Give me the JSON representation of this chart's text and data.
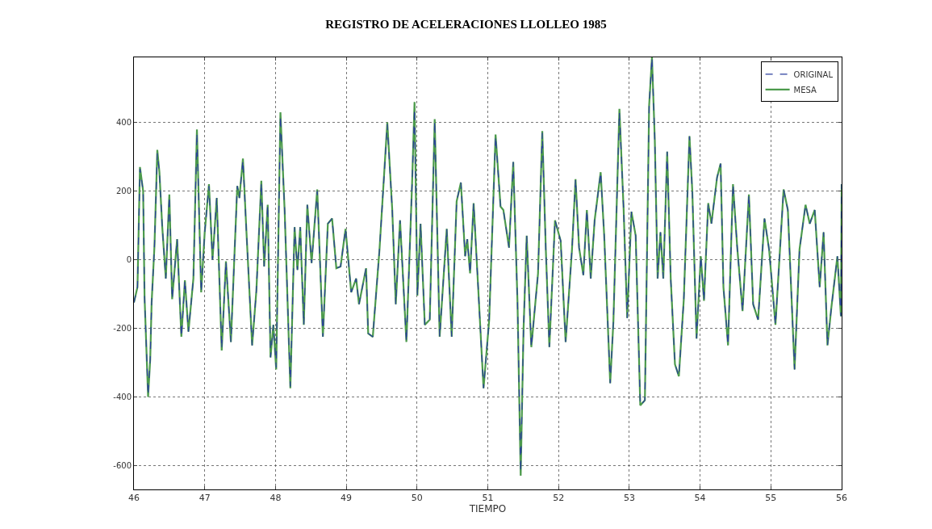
{
  "chart_data": {
    "type": "line",
    "title": "REGISTRO DE ACELERACIONES LLOLLEO 1985",
    "xlabel": "TIEMPO",
    "x": [
      46.0,
      46.05,
      46.085,
      46.13,
      46.15,
      46.2,
      46.23,
      46.25,
      46.29,
      46.33,
      46.36,
      46.4,
      46.45,
      46.5,
      46.54,
      46.61,
      46.67,
      46.72,
      46.77,
      46.84,
      46.89,
      46.95,
      47.0,
      47.06,
      47.11,
      47.17,
      47.24,
      47.3,
      47.37,
      47.46,
      47.49,
      47.54,
      47.59,
      47.67,
      47.73,
      47.8,
      47.84,
      47.89,
      47.93,
      47.97,
      48.01,
      48.07,
      48.13,
      48.21,
      48.27,
      48.31,
      48.35,
      48.4,
      48.45,
      48.51,
      48.59,
      48.67,
      48.74,
      48.8,
      48.86,
      48.92,
      48.99,
      49.07,
      49.14,
      49.18,
      49.28,
      49.31,
      49.375,
      49.47,
      49.58,
      49.65,
      49.7,
      49.76,
      49.85,
      49.93,
      49.965,
      50.005,
      50.05,
      50.11,
      50.18,
      50.25,
      50.32,
      50.42,
      50.49,
      50.56,
      50.62,
      50.68,
      50.71,
      50.75,
      50.8,
      50.86,
      50.94,
      51.02,
      51.11,
      51.18,
      51.22,
      51.3,
      51.36,
      51.42,
      51.465,
      51.505,
      51.55,
      51.615,
      51.71,
      51.77,
      51.82,
      51.87,
      51.95,
      52.03,
      52.1,
      52.19,
      52.24,
      52.29,
      52.35,
      52.4,
      52.455,
      52.51,
      52.595,
      52.645,
      52.73,
      52.775,
      52.83,
      52.86,
      52.92,
      52.97,
      53.03,
      53.09,
      53.155,
      53.22,
      53.28,
      53.32,
      53.36,
      53.4,
      53.44,
      53.48,
      53.535,
      53.585,
      53.645,
      53.7,
      53.77,
      53.85,
      53.89,
      53.95,
      54.01,
      54.055,
      54.115,
      54.16,
      54.24,
      54.29,
      54.33,
      54.395,
      54.465,
      54.525,
      54.6,
      54.69,
      54.75,
      54.82,
      54.91,
      54.975,
      55.065,
      55.18,
      55.24,
      55.335,
      55.405,
      55.49,
      55.55,
      55.62,
      55.69,
      55.745,
      55.8,
      55.855,
      55.94,
      55.99,
      56.0
    ],
    "series": [
      {
        "name": "ORIGINAL",
        "color": "#2b3f9e",
        "line_style": "dashed",
        "values": [
          -125,
          -80,
          265,
          200,
          -110,
          -395,
          -290,
          -125,
          40,
          310,
          255,
          95,
          -55,
          185,
          -115,
          60,
          -225,
          -60,
          -210,
          -55,
          370,
          -95,
          80,
          215,
          0,
          180,
          -260,
          -5,
          -240,
          215,
          180,
          290,
          80,
          -250,
          -90,
          225,
          -20,
          160,
          -285,
          -190,
          -315,
          420,
          140,
          -370,
          95,
          -30,
          95,
          -190,
          160,
          -10,
          200,
          -225,
          105,
          120,
          -25,
          -20,
          90,
          -95,
          -55,
          -130,
          -25,
          -215,
          -225,
          30,
          395,
          145,
          -130,
          115,
          -240,
          220,
          440,
          -105,
          105,
          -190,
          -175,
          405,
          -225,
          90,
          -225,
          170,
          225,
          10,
          60,
          -40,
          165,
          -65,
          -375,
          -175,
          360,
          155,
          145,
          35,
          285,
          -125,
          -620,
          -205,
          70,
          -255,
          -40,
          370,
          30,
          -255,
          115,
          55,
          -240,
          30,
          235,
          35,
          -45,
          145,
          -55,
          115,
          255,
          70,
          -360,
          -180,
          220,
          430,
          145,
          -170,
          140,
          70,
          -425,
          -410,
          450,
          590,
          350,
          -55,
          80,
          -55,
          315,
          -55,
          -305,
          -340,
          -115,
          360,
          200,
          -230,
          10,
          -120,
          165,
          105,
          240,
          280,
          -80,
          -250,
          220,
          35,
          -150,
          190,
          -130,
          -175,
          120,
          30,
          -190,
          205,
          145,
          -320,
          30,
          160,
          105,
          145,
          -80,
          80,
          -250,
          -140,
          10,
          -165,
          220
        ]
      },
      {
        "name": "MESA",
        "color": "#4c9a4c",
        "values": [
          -125,
          -80,
          270,
          200,
          -110,
          -400,
          -290,
          -125,
          40,
          320,
          255,
          95,
          -55,
          190,
          -115,
          60,
          -225,
          -60,
          -210,
          -55,
          380,
          -95,
          80,
          220,
          0,
          180,
          -265,
          -5,
          -240,
          215,
          180,
          295,
          80,
          -250,
          -90,
          230,
          -20,
          160,
          -285,
          -190,
          -320,
          430,
          140,
          -375,
          95,
          -30,
          95,
          -190,
          160,
          -10,
          205,
          -225,
          105,
          120,
          -25,
          -20,
          90,
          -95,
          -55,
          -130,
          -25,
          -215,
          -225,
          30,
          400,
          145,
          -130,
          115,
          -240,
          220,
          460,
          -105,
          105,
          -190,
          -175,
          410,
          -225,
          90,
          -225,
          170,
          225,
          10,
          60,
          -40,
          165,
          -65,
          -375,
          -175,
          365,
          155,
          145,
          35,
          285,
          -125,
          -630,
          -205,
          70,
          -255,
          -40,
          375,
          30,
          -255,
          115,
          55,
          -240,
          30,
          235,
          35,
          -45,
          145,
          -55,
          115,
          255,
          70,
          -360,
          -180,
          220,
          440,
          145,
          -170,
          140,
          70,
          -425,
          -410,
          450,
          590,
          350,
          -55,
          80,
          -55,
          315,
          -55,
          -305,
          -340,
          -115,
          360,
          200,
          -230,
          10,
          -120,
          165,
          105,
          240,
          280,
          -80,
          -250,
          220,
          35,
          -150,
          190,
          -130,
          -175,
          120,
          30,
          -190,
          205,
          145,
          -320,
          30,
          160,
          105,
          145,
          -80,
          80,
          -250,
          -140,
          10,
          -165,
          220
        ]
      }
    ],
    "xlim": [
      46,
      56
    ],
    "xticks": [
      46,
      47,
      48,
      49,
      50,
      51,
      52,
      53,
      54,
      55,
      56
    ],
    "ylim": [
      -670,
      590
    ],
    "yticks": [
      -600,
      -400,
      -200,
      0,
      200,
      400
    ],
    "grid": true,
    "legend": "top right",
    "line_style": "solid",
    "marker": "none"
  }
}
